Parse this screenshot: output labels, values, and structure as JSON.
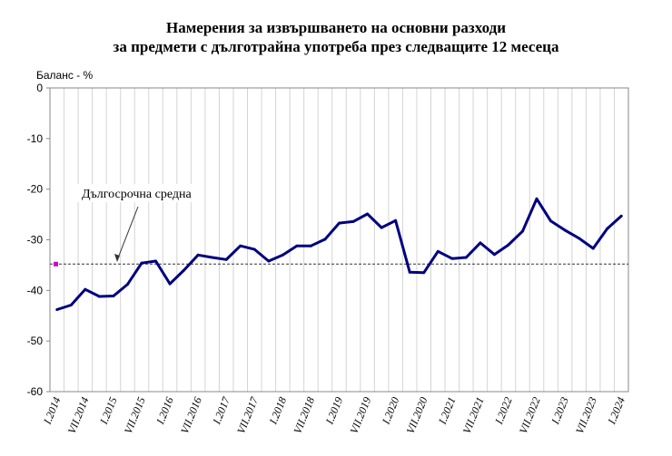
{
  "chart_data": {
    "type": "line",
    "title_lines": [
      "Намерения за извършването на основни разходи",
      "за предмети с дълготрайна употреба през следващите 12 месеца"
    ],
    "ylabel": "Баланс - %",
    "ylim": [
      -60,
      0
    ],
    "yticks": [
      0,
      -10,
      -20,
      -30,
      -40,
      -50,
      -60
    ],
    "grid": "vertical",
    "x_tick_labels": [
      "I.2014",
      "VII.2014",
      "I.2015",
      "VII.2015",
      "I.2016",
      "VII.2016",
      "I.2017",
      "VII.2017",
      "I.2018",
      "VII.2018",
      "I.2019",
      "VII.2019",
      "I.2020",
      "VII.2020",
      "I.2021",
      "VII.2021",
      "I.2022",
      "VII.2022",
      "I.2023",
      "VII.2023",
      "I.2024"
    ],
    "x_frequency": "quarterly",
    "series": [
      {
        "color": "#000080",
        "values": [
          -43.8,
          -42.9,
          -39.8,
          -41.2,
          -41.1,
          -38.8,
          -34.6,
          -34.2,
          -38.7,
          -36.0,
          -33.0,
          -33.5,
          -33.9,
          -31.2,
          -31.9,
          -34.2,
          -33.0,
          -31.2,
          -31.2,
          -29.9,
          -26.7,
          -26.4,
          -24.9,
          -27.6,
          -26.2,
          -36.4,
          -36.5,
          -32.3,
          -33.7,
          -33.5,
          -30.6,
          -32.9,
          -31.0,
          -28.3,
          -21.9,
          -26.3,
          -28.1,
          -29.7,
          -31.7,
          -27.8,
          -25.3
        ]
      }
    ],
    "reference_line": {
      "label": "Дългосрочна средна",
      "value": -34.8,
      "color": "#000000",
      "marker_color": "#cc00cc"
    }
  }
}
